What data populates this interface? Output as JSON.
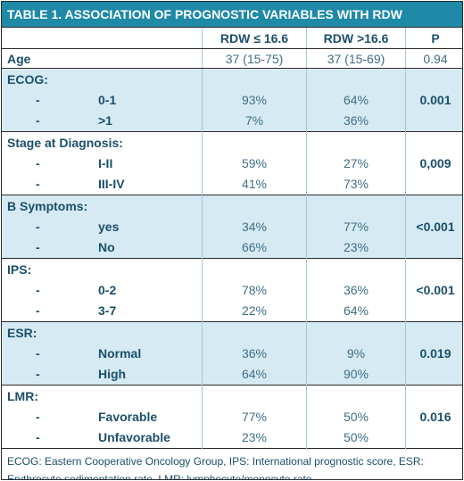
{
  "title": "TABLE 1. ASSOCIATION OF PROGNOSTIC VARIABLES WITH RDW",
  "headers": [
    "",
    "RDW ≤ 16.6",
    "RDW >16.6",
    "P"
  ],
  "age": {
    "label": "Age",
    "col1": "37 (15-75)",
    "col2": "37 (15-69)",
    "p": "0.94"
  },
  "groups": [
    {
      "label": "ECOG:",
      "rows": [
        {
          "dash": "-",
          "label": "0-1",
          "col1": "93%",
          "col2": "64%"
        },
        {
          "dash": "-",
          "label": ">1",
          "col1": "7%",
          "col2": "36%"
        }
      ],
      "p": "0.001",
      "shaded": true
    },
    {
      "label": "Stage at Diagnosis:",
      "rows": [
        {
          "dash": "-",
          "label": "I-II",
          "col1": "59%",
          "col2": "27%"
        },
        {
          "dash": "-",
          "label": "III-IV",
          "col1": "41%",
          "col2": "73%"
        }
      ],
      "p": "0,009",
      "shaded": false
    },
    {
      "label": "B Symptoms:",
      "rows": [
        {
          "dash": "-",
          "label": "yes",
          "col1": "34%",
          "col2": "77%"
        },
        {
          "dash": "-",
          "label": "No",
          "col1": "66%",
          "col2": "23%"
        }
      ],
      "p": "<0.001",
      "shaded": true
    },
    {
      "label": "IPS:",
      "rows": [
        {
          "dash": "-",
          "label": "0-2",
          "col1": "78%",
          "col2": "36%"
        },
        {
          "dash": "-",
          "label": "3-7",
          "col1": "22%",
          "col2": "64%"
        }
      ],
      "p": "<0.001",
      "shaded": false
    },
    {
      "label": "ESR:",
      "rows": [
        {
          "dash": "-",
          "label": "Normal",
          "col1": "36%",
          "col2": "9%"
        },
        {
          "dash": "-",
          "label": "High",
          "col1": "64%",
          "col2": "90%"
        }
      ],
      "p": "0.019",
      "shaded": true
    },
    {
      "label": "LMR:",
      "rows": [
        {
          "dash": "-",
          "label": "Favorable",
          "col1": "77%",
          "col2": "50%"
        },
        {
          "dash": "-",
          "label": "Unfavorable",
          "col1": "23%",
          "col2": "50%"
        }
      ],
      "p": "0.016",
      "shaded": false
    }
  ],
  "footnote": "ECOG: Eastern Cooperative Oncology Group, IPS: International prognostic score, ESR: Erythrocyte sedimentation rate, LMR: lymphocyte/monocyte rate",
  "colors": {
    "title_bg": "#1f8aa8",
    "shade": "#d6eaf3",
    "text": "#1b4f6b"
  }
}
